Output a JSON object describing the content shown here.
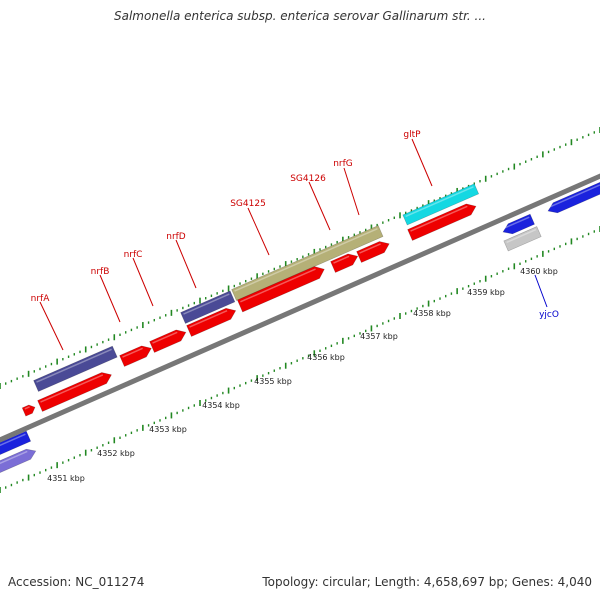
{
  "title": "Salmonella enterica subsp. enterica serovar Gallinarum str. ...",
  "accession": "Accession: NC_011274",
  "topology": "Topology: circular; Length: 4,658,697 bp; Genes: 4,040",
  "colors": {
    "label_red": "#cc0000",
    "label_blue": "#0000cc",
    "gene_red": "#ee0000",
    "gene_blue": "#1a22dd",
    "gene_navy": "#4a4a96",
    "gene_olive": "#b5b077",
    "gene_cyan": "#14d8e2",
    "gene_gray": "#c6c6c6",
    "gene_lavender": "#7b6ed6",
    "backbone": "#777777",
    "tick": "#228822"
  },
  "gene_labels": [
    {
      "text": "nrfA",
      "color": "label_red"
    },
    {
      "text": "nrfB",
      "color": "label_red"
    },
    {
      "text": "nrfC",
      "color": "label_red"
    },
    {
      "text": "nrfD",
      "color": "label_red"
    },
    {
      "text": "SG4125",
      "color": "label_red"
    },
    {
      "text": "SG4126",
      "color": "label_red"
    },
    {
      "text": "nrfG",
      "color": "label_red"
    },
    {
      "text": "gltP",
      "color": "label_red"
    },
    {
      "text": "yjcO",
      "color": "label_blue"
    }
  ],
  "kbp_labels": [
    "4351 kbp",
    "4352 kbp",
    "4353 kbp",
    "4354 kbp",
    "4355 kbp",
    "4356 kbp",
    "4357 kbp",
    "4358 kbp",
    "4359 kbp",
    "4360 kbp"
  ]
}
